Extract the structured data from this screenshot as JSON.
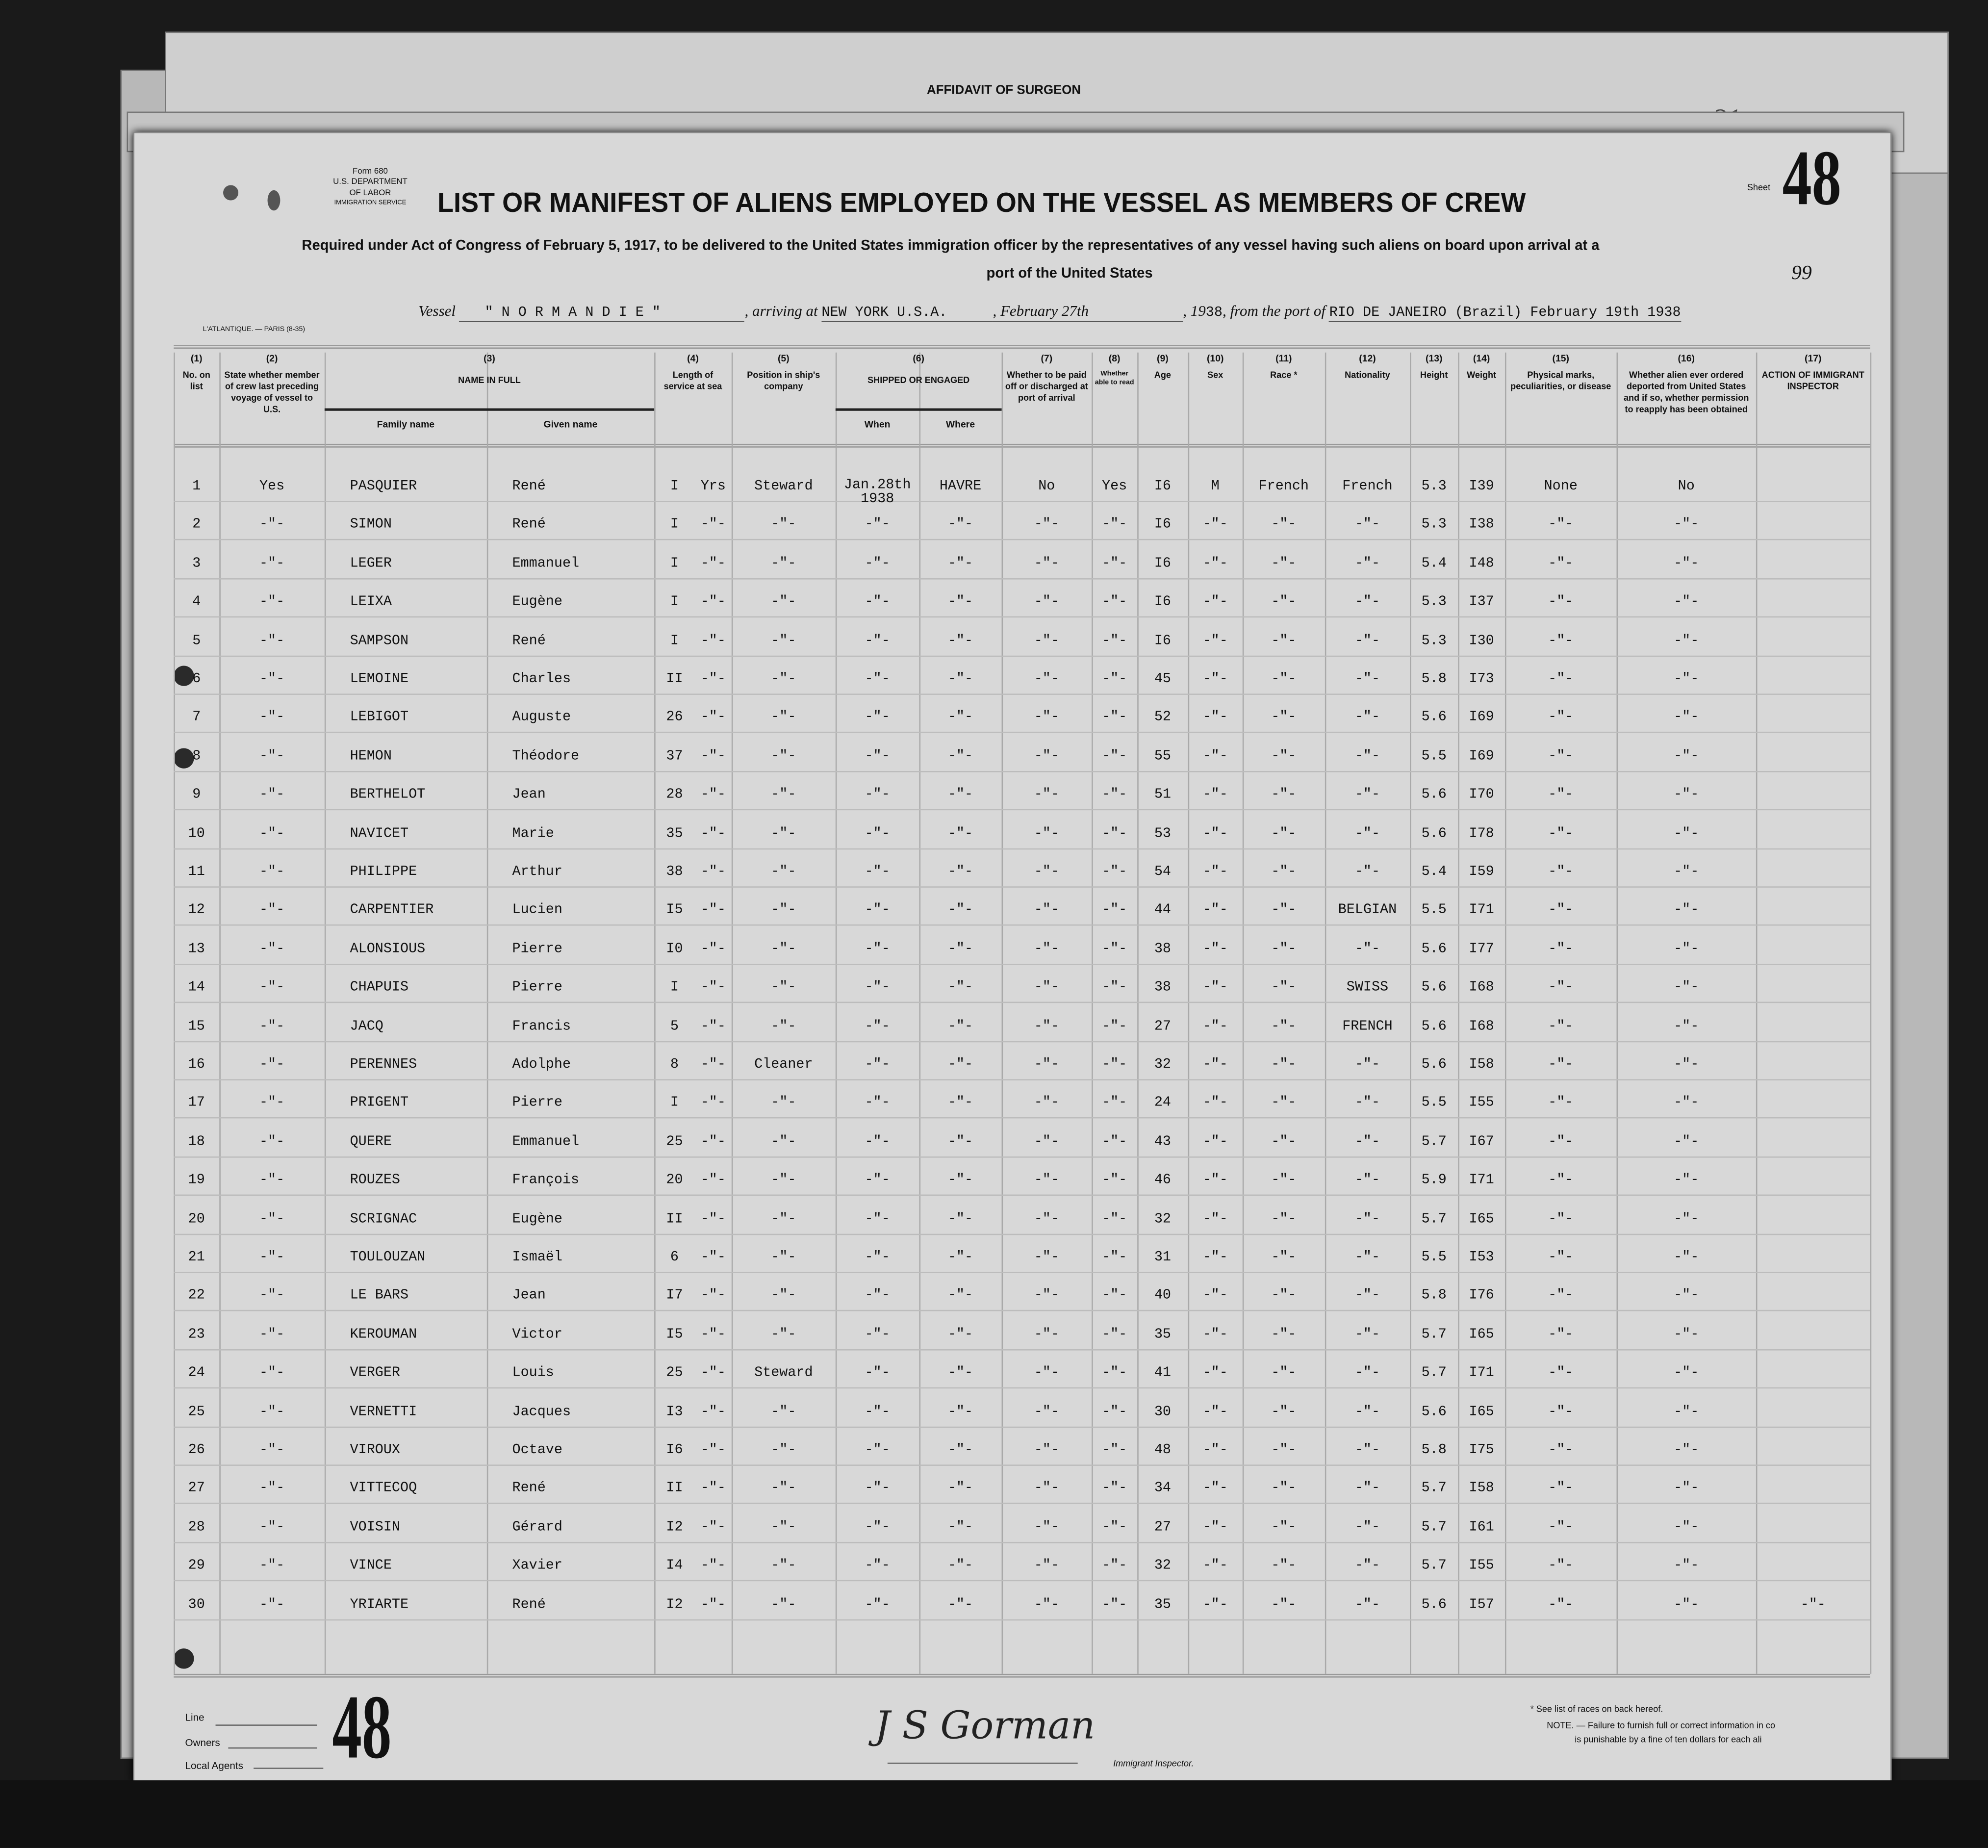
{
  "back_sheet": {
    "title": "AFFIDAVIT OF SURGEON",
    "pencil_number": "31"
  },
  "form": {
    "form_number": "Form 680",
    "department": "U.S. DEPARTMENT OF LABOR",
    "service": "IMMIGRATION SERVICE",
    "title": "LIST OR MANIFEST OF ALIENS EMPLOYED ON THE VESSEL AS MEMBERS OF CREW",
    "sheet_label": "Sheet",
    "sheet_number": "48",
    "page_note": "99",
    "requirement_line1": "Required under Act of Congress of February 5, 1917, to be delivered to the United States immigration officer by the representatives of any vessel having such aliens on board upon arrival at a",
    "requirement_line2": "port of the United States",
    "printer": "L'ATLANTIQUE. — PARIS (8-35)"
  },
  "voyage": {
    "vessel_label": "Vessel",
    "vessel": "\" N O R M A N D I E \"",
    "arriving_label": ", arriving at",
    "arriving_port": "NEW YORK U.S.A.",
    "arrival_date": ", February 27th",
    "year_label": ", 19",
    "year": "38",
    "from_label": ", from the port of",
    "from_port": "RIO DE JANEIRO (Brazil) February 19th 1938"
  },
  "columns": [
    {
      "num": "(1)",
      "label": "No. on list"
    },
    {
      "num": "(2)",
      "label": "State whether member of crew last preceding voyage of vessel to U.S."
    },
    {
      "num": "(3)",
      "label": "NAME IN FULL",
      "sub": [
        "Family name",
        "Given name"
      ]
    },
    {
      "num": "(4)",
      "label": "Length of service at sea"
    },
    {
      "num": "(5)",
      "label": "Position in ship's company"
    },
    {
      "num": "(6)",
      "label": "SHIPPED OR ENGAGED",
      "sub": [
        "When",
        "Where"
      ]
    },
    {
      "num": "(7)",
      "label": "Whether to be paid off or discharged at port of arrival"
    },
    {
      "num": "(8)",
      "label": "Whether able to read"
    },
    {
      "num": "(9)",
      "label": "Age"
    },
    {
      "num": "(10)",
      "label": "Sex"
    },
    {
      "num": "(11)",
      "label": "Race *"
    },
    {
      "num": "(12)",
      "label": "Nationality"
    },
    {
      "num": "(13)",
      "label": "Height"
    },
    {
      "num": "(14)",
      "label": "Weight"
    },
    {
      "num": "(15)",
      "label": "Physical marks, peculiarities, or disease"
    },
    {
      "num": "(16)",
      "label": "Whether alien ever ordered deported from United States and if so, whether permission to reapply has been obtained"
    },
    {
      "num": "(17)",
      "label": "ACTION OF IMMIGRANT INSPECTOR"
    }
  ],
  "row_fields": [
    "no",
    "previous_voyage",
    "family_name",
    "given_name",
    "length",
    "length_unit",
    "position",
    "when",
    "where",
    "paid_off",
    "read",
    "age",
    "sex",
    "race",
    "nationality",
    "height",
    "weight",
    "marks",
    "deported",
    "action"
  ],
  "rows": [
    [
      "1",
      "Yes",
      "PASQUIER",
      "René",
      "I",
      "Yrs",
      "Steward",
      "Jan.28th 1938",
      "HAVRE",
      "No",
      "Yes",
      "I6",
      "M",
      "French",
      "French",
      "5.3",
      "I39",
      "None",
      "No",
      ""
    ],
    [
      "2",
      "-\"-",
      "SIMON",
      "René",
      "I",
      "-\"-",
      "-\"-",
      "-\"-",
      "-\"-",
      "-\"-",
      "-\"-",
      "I6",
      "-\"-",
      "-\"-",
      "-\"-",
      "5.3",
      "I38",
      "-\"-",
      "-\"-",
      ""
    ],
    [
      "3",
      "-\"-",
      "LEGER",
      "Emmanuel",
      "I",
      "-\"-",
      "-\"-",
      "-\"-",
      "-\"-",
      "-\"-",
      "-\"-",
      "I6",
      "-\"-",
      "-\"-",
      "-\"-",
      "5.4",
      "I48",
      "-\"-",
      "-\"-",
      ""
    ],
    [
      "4",
      "-\"-",
      "LEIXA",
      "Eugène",
      "I",
      "-\"-",
      "-\"-",
      "-\"-",
      "-\"-",
      "-\"-",
      "-\"-",
      "I6",
      "-\"-",
      "-\"-",
      "-\"-",
      "5.3",
      "I37",
      "-\"-",
      "-\"-",
      ""
    ],
    [
      "5",
      "-\"-",
      "SAMPSON",
      "René",
      "I",
      "-\"-",
      "-\"-",
      "-\"-",
      "-\"-",
      "-\"-",
      "-\"-",
      "I6",
      "-\"-",
      "-\"-",
      "-\"-",
      "5.3",
      "I30",
      "-\"-",
      "-\"-",
      ""
    ],
    [
      "6",
      "-\"-",
      "LEMOINE",
      "Charles",
      "II",
      "-\"-",
      "-\"-",
      "-\"-",
      "-\"-",
      "-\"-",
      "-\"-",
      "45",
      "-\"-",
      "-\"-",
      "-\"-",
      "5.8",
      "I73",
      "-\"-",
      "-\"-",
      ""
    ],
    [
      "7",
      "-\"-",
      "LEBIGOT",
      "Auguste",
      "26",
      "-\"-",
      "-\"-",
      "-\"-",
      "-\"-",
      "-\"-",
      "-\"-",
      "52",
      "-\"-",
      "-\"-",
      "-\"-",
      "5.6",
      "I69",
      "-\"-",
      "-\"-",
      ""
    ],
    [
      "8",
      "-\"-",
      "HEMON",
      "Théodore",
      "37",
      "-\"-",
      "-\"-",
      "-\"-",
      "-\"-",
      "-\"-",
      "-\"-",
      "55",
      "-\"-",
      "-\"-",
      "-\"-",
      "5.5",
      "I69",
      "-\"-",
      "-\"-",
      ""
    ],
    [
      "9",
      "-\"-",
      "BERTHELOT",
      "Jean",
      "28",
      "-\"-",
      "-\"-",
      "-\"-",
      "-\"-",
      "-\"-",
      "-\"-",
      "51",
      "-\"-",
      "-\"-",
      "-\"-",
      "5.6",
      "I70",
      "-\"-",
      "-\"-",
      ""
    ],
    [
      "10",
      "-\"-",
      "NAVICET",
      "Marie",
      "35",
      "-\"-",
      "-\"-",
      "-\"-",
      "-\"-",
      "-\"-",
      "-\"-",
      "53",
      "-\"-",
      "-\"-",
      "-\"-",
      "5.6",
      "I78",
      "-\"-",
      "-\"-",
      ""
    ],
    [
      "11",
      "-\"-",
      "PHILIPPE",
      "Arthur",
      "38",
      "-\"-",
      "-\"-",
      "-\"-",
      "-\"-",
      "-\"-",
      "-\"-",
      "54",
      "-\"-",
      "-\"-",
      "-\"-",
      "5.4",
      "I59",
      "-\"-",
      "-\"-",
      ""
    ],
    [
      "12",
      "-\"-",
      "CARPENTIER",
      "Lucien",
      "I5",
      "-\"-",
      "-\"-",
      "-\"-",
      "-\"-",
      "-\"-",
      "-\"-",
      "44",
      "-\"-",
      "-\"-",
      "BELGIAN",
      "5.5",
      "I71",
      "-\"-",
      "-\"-",
      ""
    ],
    [
      "13",
      "-\"-",
      "ALONSIOUS",
      "Pierre",
      "I0",
      "-\"-",
      "-\"-",
      "-\"-",
      "-\"-",
      "-\"-",
      "-\"-",
      "38",
      "-\"-",
      "-\"-",
      "-\"-",
      "5.6",
      "I77",
      "-\"-",
      "-\"-",
      ""
    ],
    [
      "14",
      "-\"-",
      "CHAPUIS",
      "Pierre",
      "I",
      "-\"-",
      "-\"-",
      "-\"-",
      "-\"-",
      "-\"-",
      "-\"-",
      "38",
      "-\"-",
      "-\"-",
      "SWISS",
      "5.6",
      "I68",
      "-\"-",
      "-\"-",
      ""
    ],
    [
      "15",
      "-\"-",
      "JACQ",
      "Francis",
      "5",
      "-\"-",
      "-\"-",
      "-\"-",
      "-\"-",
      "-\"-",
      "-\"-",
      "27",
      "-\"-",
      "-\"-",
      "FRENCH",
      "5.6",
      "I68",
      "-\"-",
      "-\"-",
      ""
    ],
    [
      "16",
      "-\"-",
      "PERENNES",
      "Adolphe",
      "8",
      "-\"-",
      "Cleaner",
      "-\"-",
      "-\"-",
      "-\"-",
      "-\"-",
      "32",
      "-\"-",
      "-\"-",
      "-\"-",
      "5.6",
      "I58",
      "-\"-",
      "-\"-",
      ""
    ],
    [
      "17",
      "-\"-",
      "PRIGENT",
      "Pierre",
      "I",
      "-\"-",
      "-\"-",
      "-\"-",
      "-\"-",
      "-\"-",
      "-\"-",
      "24",
      "-\"-",
      "-\"-",
      "-\"-",
      "5.5",
      "I55",
      "-\"-",
      "-\"-",
      ""
    ],
    [
      "18",
      "-\"-",
      "QUERE",
      "Emmanuel",
      "25",
      "-\"-",
      "-\"-",
      "-\"-",
      "-\"-",
      "-\"-",
      "-\"-",
      "43",
      "-\"-",
      "-\"-",
      "-\"-",
      "5.7",
      "I67",
      "-\"-",
      "-\"-",
      ""
    ],
    [
      "19",
      "-\"-",
      "ROUZES",
      "François",
      "20",
      "-\"-",
      "-\"-",
      "-\"-",
      "-\"-",
      "-\"-",
      "-\"-",
      "46",
      "-\"-",
      "-\"-",
      "-\"-",
      "5.9",
      "I71",
      "-\"-",
      "-\"-",
      ""
    ],
    [
      "20",
      "-\"-",
      "SCRIGNAC",
      "Eugène",
      "II",
      "-\"-",
      "-\"-",
      "-\"-",
      "-\"-",
      "-\"-",
      "-\"-",
      "32",
      "-\"-",
      "-\"-",
      "-\"-",
      "5.7",
      "I65",
      "-\"-",
      "-\"-",
      ""
    ],
    [
      "21",
      "-\"-",
      "TOULOUZAN",
      "Ismaël",
      "6",
      "-\"-",
      "-\"-",
      "-\"-",
      "-\"-",
      "-\"-",
      "-\"-",
      "31",
      "-\"-",
      "-\"-",
      "-\"-",
      "5.5",
      "I53",
      "-\"-",
      "-\"-",
      ""
    ],
    [
      "22",
      "-\"-",
      "LE BARS",
      "Jean",
      "I7",
      "-\"-",
      "-\"-",
      "-\"-",
      "-\"-",
      "-\"-",
      "-\"-",
      "40",
      "-\"-",
      "-\"-",
      "-\"-",
      "5.8",
      "I76",
      "-\"-",
      "-\"-",
      ""
    ],
    [
      "23",
      "-\"-",
      "KEROUMAN",
      "Victor",
      "I5",
      "-\"-",
      "-\"-",
      "-\"-",
      "-\"-",
      "-\"-",
      "-\"-",
      "35",
      "-\"-",
      "-\"-",
      "-\"-",
      "5.7",
      "I65",
      "-\"-",
      "-\"-",
      ""
    ],
    [
      "24",
      "-\"-",
      "VERGER",
      "Louis",
      "25",
      "-\"-",
      "Steward",
      "-\"-",
      "-\"-",
      "-\"-",
      "-\"-",
      "41",
      "-\"-",
      "-\"-",
      "-\"-",
      "5.7",
      "I71",
      "-\"-",
      "-\"-",
      ""
    ],
    [
      "25",
      "-\"-",
      "VERNETTI",
      "Jacques",
      "I3",
      "-\"-",
      "-\"-",
      "-\"-",
      "-\"-",
      "-\"-",
      "-\"-",
      "30",
      "-\"-",
      "-\"-",
      "-\"-",
      "5.6",
      "I65",
      "-\"-",
      "-\"-",
      ""
    ],
    [
      "26",
      "-\"-",
      "VIROUX",
      "Octave",
      "I6",
      "-\"-",
      "-\"-",
      "-\"-",
      "-\"-",
      "-\"-",
      "-\"-",
      "48",
      "-\"-",
      "-\"-",
      "-\"-",
      "5.8",
      "I75",
      "-\"-",
      "-\"-",
      ""
    ],
    [
      "27",
      "-\"-",
      "VITTECOQ",
      "René",
      "II",
      "-\"-",
      "-\"-",
      "-\"-",
      "-\"-",
      "-\"-",
      "-\"-",
      "34",
      "-\"-",
      "-\"-",
      "-\"-",
      "5.7",
      "I58",
      "-\"-",
      "-\"-",
      ""
    ],
    [
      "28",
      "-\"-",
      "VOISIN",
      "Gérard",
      "I2",
      "-\"-",
      "-\"-",
      "-\"-",
      "-\"-",
      "-\"-",
      "-\"-",
      "27",
      "-\"-",
      "-\"-",
      "-\"-",
      "5.7",
      "I61",
      "-\"-",
      "-\"-",
      ""
    ],
    [
      "29",
      "-\"-",
      "VINCE",
      "Xavier",
      "I4",
      "-\"-",
      "-\"-",
      "-\"-",
      "-\"-",
      "-\"-",
      "-\"-",
      "32",
      "-\"-",
      "-\"-",
      "-\"-",
      "5.7",
      "I55",
      "-\"-",
      "-\"-",
      ""
    ],
    [
      "30",
      "-\"-",
      "YRIARTE",
      "René",
      "I2",
      "-\"-",
      "-\"-",
      "-\"-",
      "-\"-",
      "-\"-",
      "-\"-",
      "35",
      "-\"-",
      "-\"-",
      "-\"-",
      "5.6",
      "I57",
      "-\"-",
      "-\"-",
      "-\"-"
    ]
  ],
  "footer": {
    "sheet_number": "48",
    "line_label": "Line",
    "owners_label": "Owners",
    "agents_label": "Local Agents",
    "signature": "J S Gorman",
    "inspector_label": "Immigrant Inspector.",
    "race_note": "* See list of races on back hereof.",
    "note_label": "NOTE. —",
    "note_line1": "Failure to furnish full or correct information in co",
    "note_line2": "is punishable by a fine of ten dollars for each ali"
  }
}
